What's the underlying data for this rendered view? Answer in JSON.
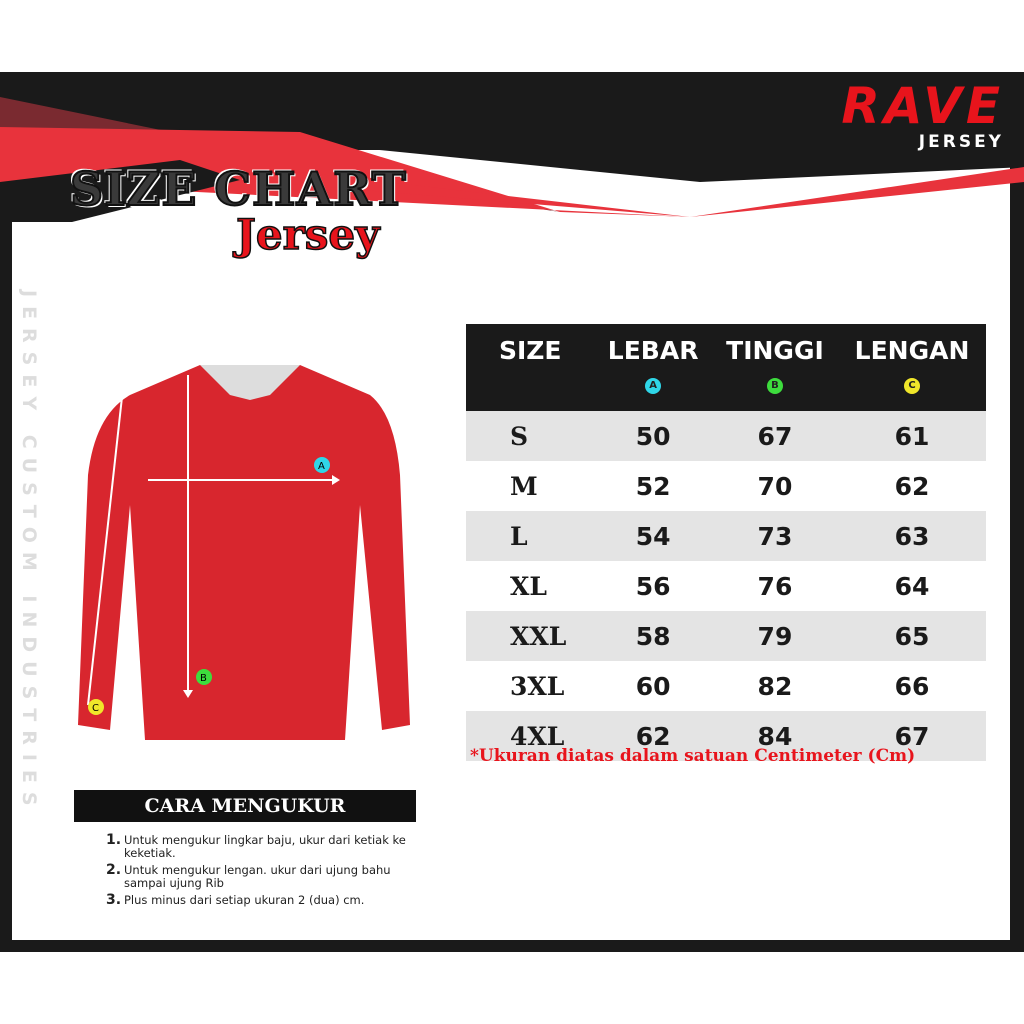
{
  "header": {
    "title": "SIZE CHART",
    "subtitle": "Jersey"
  },
  "logo": {
    "brand": "RAVE",
    "sub": "JERSEY"
  },
  "side_text": "JERSEY CUSTOM INDUSTRIES",
  "colors": {
    "red": "#e8141c",
    "black": "#1a1a1a",
    "marker_a": "#2fd6e8",
    "marker_b": "#3ddc3d",
    "marker_c": "#f0e62a"
  },
  "table": {
    "headers": [
      {
        "label": "SIZE",
        "marker": ""
      },
      {
        "label": "LEBAR",
        "marker": "A"
      },
      {
        "label": "TINGGI",
        "marker": "B"
      },
      {
        "label": "LENGAN",
        "marker": "C"
      }
    ],
    "rows": [
      [
        "S",
        "50",
        "67",
        "61"
      ],
      [
        "M",
        "52",
        "70",
        "62"
      ],
      [
        "L",
        "54",
        "73",
        "63"
      ],
      [
        "XL",
        "56",
        "76",
        "64"
      ],
      [
        "XXL",
        "58",
        "79",
        "65"
      ],
      [
        "3XL",
        "60",
        "82",
        "66"
      ],
      [
        "4XL",
        "62",
        "84",
        "67"
      ]
    ]
  },
  "note": "*Ukuran diatas dalam satuan Centimeter (Cm)",
  "diagram": {
    "markers": [
      "A",
      "B",
      "C"
    ]
  },
  "how": {
    "title": "CARA MENGUKUR",
    "steps": [
      {
        "num": "1.",
        "text": "Untuk mengukur lingkar baju, ukur dari ketiak ke keketiak."
      },
      {
        "num": "2.",
        "text": "Untuk mengukur lengan. ukur dari ujung bahu sampai ujung Rib"
      },
      {
        "num": "3.",
        "text": "Plus minus dari setiap ukuran 2 (dua) cm."
      }
    ]
  }
}
